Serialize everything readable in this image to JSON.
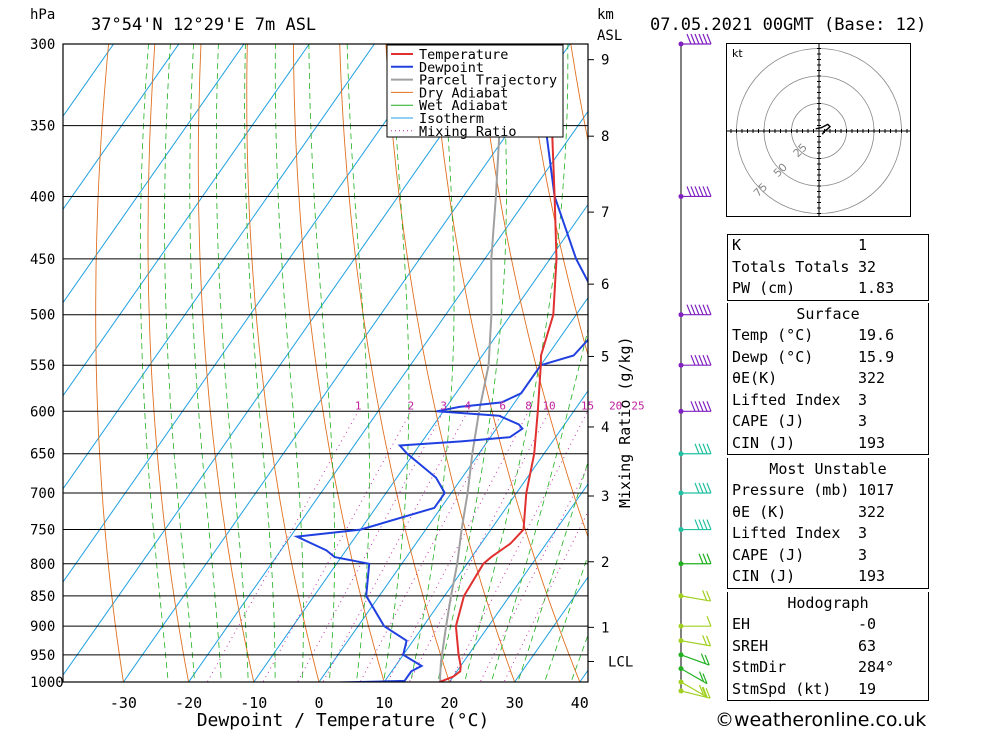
{
  "header": {
    "pressure_unit": "hPa",
    "location": "37°54'N 12°29'E 7m ASL",
    "height_unit_km": "km",
    "height_unit_asl": "ASL",
    "run": "07.05.2021 00GMT (Base: 12)"
  },
  "chart_data": {
    "type": "line",
    "subtype": "skew-t log-p",
    "xlabel": "Dewpoint / Temperature (°C)",
    "ylabel": "hPa",
    "y2label": "Mixing Ratio (g/kg)",
    "pressure_ticks": [
      300,
      350,
      400,
      450,
      500,
      550,
      600,
      650,
      700,
      750,
      800,
      850,
      900,
      950,
      1000
    ],
    "temperature_ticks": [
      -30,
      -20,
      -10,
      0,
      10,
      20,
      30,
      40
    ],
    "km_ticks": [
      {
        "label": "1",
        "p": 902
      },
      {
        "label": "2",
        "p": 797
      },
      {
        "label": "3",
        "p": 704
      },
      {
        "label": "4",
        "p": 618
      },
      {
        "label": "5",
        "p": 541
      },
      {
        "label": "6",
        "p": 472
      },
      {
        "label": "7",
        "p": 412
      },
      {
        "label": "8",
        "p": 357
      },
      {
        "label": "9",
        "p": 309
      }
    ],
    "lcl_label": "LCL",
    "lcl_pressure": 962,
    "mixing_ratio_labels": [
      "1",
      "2",
      "3",
      "4",
      "6",
      "8",
      "10",
      "15",
      "20",
      "25"
    ],
    "mixing_ratio_values": [
      1,
      2,
      3,
      4,
      6,
      8,
      10,
      15,
      20,
      25
    ],
    "legend": [
      "Temperature",
      "Dewpoint",
      "Parcel Trajectory",
      "Dry Adiabat",
      "Wet Adiabat",
      "Isotherm",
      "Mixing Ratio"
    ],
    "colors": {
      "temperature": "#e03030",
      "dewpoint": "#2040e0",
      "parcel": "#a0a0a0",
      "dry_adiabat": "#e07020",
      "wet_adiabat": "#20b020",
      "isotherm": "#20a0e0",
      "mixing_ratio": "#c020a0"
    },
    "series": [
      {
        "name": "Temperature",
        "points": [
          [
            1017,
            19.6
          ],
          [
            1000,
            18.5
          ],
          [
            990,
            20
          ],
          [
            980,
            20.5
          ],
          [
            970,
            20
          ],
          [
            950,
            18.5
          ],
          [
            900,
            15
          ],
          [
            850,
            13
          ],
          [
            800,
            12.5
          ],
          [
            790,
            13
          ],
          [
            770,
            14.5
          ],
          [
            750,
            15
          ],
          [
            700,
            11.5
          ],
          [
            650,
            8.5
          ],
          [
            600,
            4.5
          ],
          [
            550,
            0
          ],
          [
            540,
            -1
          ],
          [
            500,
            -3.5
          ],
          [
            450,
            -9
          ],
          [
            400,
            -16
          ],
          [
            350,
            -24
          ],
          [
            300,
            -33
          ]
        ]
      },
      {
        "name": "Dewpoint",
        "points": [
          [
            1017,
            15.9
          ],
          [
            1005,
            15
          ],
          [
            1003,
            10
          ],
          [
            1001,
            3
          ],
          [
            998,
            13
          ],
          [
            980,
            13
          ],
          [
            970,
            14
          ],
          [
            960,
            12
          ],
          [
            950,
            10
          ],
          [
            925,
            9
          ],
          [
            900,
            4
          ],
          [
            850,
            -2
          ],
          [
            800,
            -5
          ],
          [
            790,
            -11
          ],
          [
            780,
            -13
          ],
          [
            760,
            -19
          ],
          [
            750,
            -10
          ],
          [
            720,
            -1
          ],
          [
            700,
            -1
          ],
          [
            680,
            -4
          ],
          [
            650,
            -11
          ],
          [
            640,
            -13
          ],
          [
            635,
            -4
          ],
          [
            630,
            3
          ],
          [
            620,
            4
          ],
          [
            615,
            3
          ],
          [
            605,
            -1
          ],
          [
            600,
            -11
          ],
          [
            595,
            -8
          ],
          [
            590,
            -2
          ],
          [
            580,
            0
          ],
          [
            550,
            0
          ],
          [
            540,
            4
          ],
          [
            510,
            5
          ],
          [
            500,
            4.5
          ],
          [
            450,
            -6
          ],
          [
            400,
            -16
          ],
          [
            350,
            -25
          ],
          [
            300,
            -36
          ]
        ]
      },
      {
        "name": "Parcel Trajectory",
        "points": [
          [
            1017,
            19.6
          ],
          [
            990,
            18
          ],
          [
            962,
            16.5
          ],
          [
            900,
            13.5
          ],
          [
            850,
            11
          ],
          [
            800,
            8.5
          ],
          [
            750,
            5.5
          ],
          [
            700,
            2.5
          ],
          [
            650,
            -1
          ],
          [
            600,
            -4.5
          ],
          [
            550,
            -8
          ],
          [
            500,
            -13
          ],
          [
            450,
            -19
          ],
          [
            400,
            -25
          ],
          [
            350,
            -32
          ],
          [
            300,
            -41
          ]
        ]
      }
    ],
    "wind_barbs": [
      {
        "p": 1017,
        "dir": 284,
        "spd": 19
      },
      {
        "p": 1000,
        "dir": 300,
        "spd": 15
      },
      {
        "p": 975,
        "dir": 300,
        "spd": 20
      },
      {
        "p": 950,
        "dir": 290,
        "spd": 20
      },
      {
        "p": 925,
        "dir": 280,
        "spd": 15
      },
      {
        "p": 900,
        "dir": 270,
        "spd": 10
      },
      {
        "p": 850,
        "dir": 280,
        "spd": 15
      },
      {
        "p": 800,
        "dir": 270,
        "spd": 25
      },
      {
        "p": 750,
        "dir": 270,
        "spd": 35
      },
      {
        "p": 700,
        "dir": 270,
        "spd": 40
      },
      {
        "p": 650,
        "dir": 270,
        "spd": 40
      },
      {
        "p": 600,
        "dir": 270,
        "spd": 45
      },
      {
        "p": 550,
        "dir": 270,
        "spd": 50
      },
      {
        "p": 500,
        "dir": 270,
        "spd": 55
      },
      {
        "p": 400,
        "dir": 270,
        "spd": 60
      },
      {
        "p": 300,
        "dir": 270,
        "spd": 65
      }
    ]
  },
  "hodograph": {
    "unit": "kt",
    "rings": [
      "25",
      "50",
      "75"
    ],
    "points_kt": [
      [
        -3,
        2
      ],
      [
        2,
        3
      ],
      [
        6,
        5
      ],
      [
        8,
        6
      ],
      [
        10,
        4
      ],
      [
        8,
        2
      ],
      [
        5,
        0
      ],
      [
        3,
        -3
      ]
    ]
  },
  "indices": {
    "rows": [
      {
        "label": "K",
        "value": "1"
      },
      {
        "label": "Totals Totals",
        "value": "32"
      },
      {
        "label": "PW (cm)",
        "value": "1.83"
      }
    ],
    "surface_title": "Surface",
    "surface": [
      {
        "label": "Temp (°C)",
        "value": "19.6"
      },
      {
        "label": "Dewp (°C)",
        "value": "15.9"
      },
      {
        "label": "θE(K)",
        "value": "322"
      },
      {
        "label": "Lifted Index",
        "value": "3"
      },
      {
        "label": "CAPE (J)",
        "value": "3"
      },
      {
        "label": "CIN (J)",
        "value": "193"
      }
    ],
    "mu_title": "Most Unstable",
    "mu": [
      {
        "label": "Pressure (mb)",
        "value": "1017"
      },
      {
        "label": "θE (K)",
        "value": "322"
      },
      {
        "label": "Lifted Index",
        "value": "3"
      },
      {
        "label": "CAPE (J)",
        "value": "3"
      },
      {
        "label": "CIN (J)",
        "value": "193"
      }
    ],
    "hodo_title": "Hodograph",
    "hodo": [
      {
        "label": "EH",
        "value": "-0"
      },
      {
        "label": "SREH",
        "value": "63"
      },
      {
        "label": "StmDir",
        "value": "284°"
      },
      {
        "label": "StmSpd (kt)",
        "value": "19"
      }
    ]
  },
  "credit": "©weatheronline.co.uk"
}
